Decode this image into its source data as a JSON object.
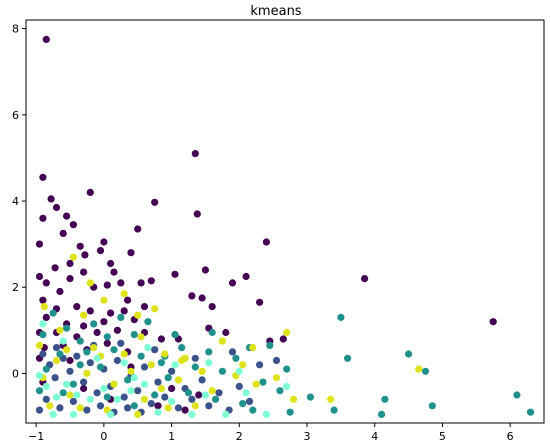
{
  "chart_data": {
    "type": "scatter",
    "title": "kmeans",
    "xlabel": "",
    "ylabel": "",
    "xlim": [
      -1.15,
      6.5
    ],
    "ylim": [
      -1.15,
      8.2
    ],
    "x_ticks": [
      -1,
      0,
      1,
      2,
      3,
      4,
      5,
      6
    ],
    "y_ticks": [
      0,
      2,
      4,
      6,
      8
    ],
    "x_tick_labels": [
      "−1",
      "0",
      "1",
      "2",
      "3",
      "4",
      "5",
      "6"
    ],
    "y_tick_labels": [
      "0",
      "2",
      "4",
      "6",
      "8"
    ],
    "grid": false,
    "legend": "none",
    "series": [
      {
        "color": "#440154",
        "points": [
          [
            -0.85,
            7.75
          ],
          [
            -0.9,
            4.55
          ],
          [
            -0.78,
            4.05
          ],
          [
            -0.2,
            4.2
          ],
          [
            0.75,
            3.97
          ],
          [
            1.35,
            5.1
          ],
          [
            1.38,
            3.7
          ],
          [
            2.4,
            3.05
          ],
          [
            -0.7,
            3.85
          ],
          [
            -0.55,
            3.65
          ],
          [
            -0.45,
            3.45
          ],
          [
            -0.9,
            3.6
          ],
          [
            -0.95,
            3.0
          ],
          [
            -0.6,
            3.25
          ],
          [
            -0.35,
            2.95
          ],
          [
            0.0,
            3.05
          ],
          [
            0.15,
            2.35
          ],
          [
            0.5,
            3.35
          ],
          [
            -0.72,
            2.45
          ],
          [
            -0.5,
            2.55
          ],
          [
            -0.28,
            2.75
          ],
          [
            -0.05,
            2.85
          ],
          [
            0.4,
            2.8
          ],
          [
            0.1,
            2.55
          ],
          [
            -0.95,
            2.25
          ],
          [
            -0.85,
            2.1
          ],
          [
            -0.65,
            1.9
          ],
          [
            -0.5,
            2.2
          ],
          [
            -0.3,
            2.35
          ],
          [
            -0.15,
            2.0
          ],
          [
            0.05,
            2.05
          ],
          [
            0.25,
            2.1
          ],
          [
            0.55,
            2.1
          ],
          [
            0.7,
            2.15
          ],
          [
            1.05,
            2.3
          ],
          [
            1.5,
            2.4
          ],
          [
            1.9,
            2.1
          ],
          [
            2.1,
            2.25
          ],
          [
            3.85,
            2.2
          ],
          [
            5.75,
            1.2
          ],
          [
            1.3,
            1.8
          ],
          [
            1.45,
            1.75
          ],
          [
            1.6,
            1.55
          ],
          [
            2.3,
            1.65
          ],
          [
            -0.9,
            1.7
          ],
          [
            -0.7,
            1.5
          ],
          [
            -0.4,
            1.55
          ],
          [
            -0.2,
            1.45
          ],
          [
            0.1,
            1.4
          ],
          [
            0.35,
            1.7
          ],
          [
            0.6,
            1.55
          ],
          [
            0.45,
            1.25
          ],
          [
            0.0,
            1.2
          ],
          [
            -0.3,
            1.1
          ],
          [
            -0.55,
            1.15
          ],
          [
            -0.85,
            1.3
          ],
          [
            -0.95,
            0.95
          ],
          [
            -0.7,
            0.95
          ],
          [
            -0.4,
            0.85
          ],
          [
            -0.1,
            0.95
          ],
          [
            0.2,
            1.0
          ],
          [
            0.6,
            0.95
          ],
          [
            0.85,
            0.8
          ],
          [
            1.1,
            0.8
          ],
          [
            1.55,
            1.05
          ],
          [
            1.8,
            0.95
          ],
          [
            2.45,
            0.75
          ],
          [
            2.65,
            0.8
          ],
          [
            -0.88,
            0.6
          ],
          [
            -0.6,
            0.65
          ],
          [
            -0.25,
            0.55
          ],
          [
            0.05,
            0.7
          ],
          [
            0.35,
            0.5
          ],
          [
            -0.95,
            0.35
          ],
          [
            -0.5,
            0.3
          ],
          [
            0.4,
            0.15
          ],
          [
            1.0,
            -0.35
          ],
          [
            1.4,
            -0.5
          ],
          [
            1.2,
            -0.85
          ],
          [
            0.8,
            -0.75
          ],
          [
            -0.9,
            -0.2
          ],
          [
            -0.3,
            -0.35
          ],
          [
            0.1,
            -0.6
          ],
          [
            0.3,
            1.45
          ]
        ]
      },
      {
        "color": "#3b528b",
        "points": [
          [
            -0.9,
            0.45
          ],
          [
            -0.8,
            0.2
          ],
          [
            -0.72,
            -0.1
          ],
          [
            -0.6,
            0.35
          ],
          [
            -0.5,
            0.05
          ],
          [
            -0.4,
            0.4
          ],
          [
            -0.3,
            -0.2
          ],
          [
            -0.2,
            0.25
          ],
          [
            -0.1,
            -0.45
          ],
          [
            0.0,
            0.1
          ],
          [
            0.1,
            -0.3
          ],
          [
            0.2,
            0.3
          ],
          [
            0.3,
            -0.55
          ],
          [
            0.4,
            -0.05
          ],
          [
            0.5,
            -0.4
          ],
          [
            0.6,
            0.15
          ],
          [
            0.7,
            -0.7
          ],
          [
            0.8,
            -0.2
          ],
          [
            0.9,
            -0.55
          ],
          [
            1.0,
            0.05
          ],
          [
            1.1,
            -0.8
          ],
          [
            1.2,
            -0.35
          ],
          [
            1.3,
            -0.6
          ],
          [
            1.45,
            -0.15
          ],
          [
            1.55,
            -0.75
          ],
          [
            1.7,
            -0.45
          ],
          [
            1.85,
            -0.85
          ],
          [
            2.0,
            -0.3
          ],
          [
            2.15,
            -0.65
          ],
          [
            2.3,
            0.2
          ],
          [
            -0.85,
            -0.6
          ],
          [
            -0.65,
            -0.8
          ],
          [
            -0.45,
            -0.65
          ],
          [
            -0.25,
            -0.85
          ],
          [
            -0.05,
            -0.75
          ],
          [
            0.15,
            -0.9
          ],
          [
            0.35,
            -0.8
          ],
          [
            0.55,
            -0.9
          ],
          [
            -0.95,
            -0.85
          ],
          [
            -0.7,
            0.6
          ],
          [
            -0.15,
            0.65
          ],
          [
            0.25,
            0.7
          ],
          [
            0.75,
            0.55
          ],
          [
            1.35,
            0.35
          ],
          [
            1.9,
            0.5
          ],
          [
            2.55,
            0.3
          ]
        ]
      },
      {
        "color": "#21918c",
        "points": [
          [
            -0.9,
            0.9
          ],
          [
            -0.75,
            1.4
          ],
          [
            -0.55,
            1.05
          ],
          [
            -0.35,
            0.75
          ],
          [
            -0.15,
            1.15
          ],
          [
            0.05,
            0.85
          ],
          [
            0.25,
            1.3
          ],
          [
            0.45,
            0.9
          ],
          [
            0.65,
            1.2
          ],
          [
            0.9,
            0.4
          ],
          [
            1.15,
            0.6
          ],
          [
            1.35,
            0.15
          ],
          [
            1.55,
            0.5
          ],
          [
            1.75,
            0.05
          ],
          [
            1.95,
            0.35
          ],
          [
            2.15,
            0.6
          ],
          [
            2.35,
            -0.2
          ],
          [
            2.6,
            -0.4
          ],
          [
            2.75,
            -0.9
          ],
          [
            3.5,
            1.3
          ],
          [
            3.6,
            0.35
          ],
          [
            4.5,
            0.45
          ],
          [
            4.75,
            0.05
          ],
          [
            4.15,
            -0.6
          ],
          [
            4.1,
            -0.95
          ],
          [
            4.85,
            -0.75
          ],
          [
            6.1,
            -0.5
          ],
          [
            6.3,
            -0.9
          ],
          [
            3.05,
            -0.55
          ],
          [
            3.4,
            -0.85
          ],
          [
            -0.85,
            0.1
          ],
          [
            -0.65,
            0.45
          ],
          [
            -0.45,
            -0.25
          ],
          [
            -0.25,
            0.5
          ],
          [
            -0.05,
            0.15
          ],
          [
            0.15,
            0.55
          ],
          [
            0.35,
            -0.15
          ],
          [
            0.55,
            0.4
          ],
          [
            0.75,
            -0.5
          ],
          [
            0.95,
            -0.1
          ],
          [
            1.25,
            -0.45
          ],
          [
            1.6,
            0.95
          ],
          [
            2.05,
            -0.7
          ],
          [
            2.45,
            0.65
          ],
          [
            -0.95,
            -0.4
          ],
          [
            -0.6,
            -0.45
          ],
          [
            -0.35,
            0.2
          ],
          [
            0.05,
            -0.55
          ],
          [
            0.45,
            -0.75
          ],
          [
            0.85,
            0.25
          ],
          [
            1.05,
            0.9
          ],
          [
            1.65,
            -0.6
          ],
          [
            2.2,
            -0.85
          ],
          [
            2.7,
            0.1
          ]
        ]
      },
      {
        "color": "#dde318",
        "points": [
          [
            -0.88,
            1.55
          ],
          [
            -0.65,
            1.0
          ],
          [
            -0.45,
            2.7
          ],
          [
            -0.3,
            1.35
          ],
          [
            0.0,
            1.7
          ],
          [
            0.3,
            1.85
          ],
          [
            0.55,
            0.85
          ],
          [
            0.75,
            1.5
          ],
          [
            0.9,
            0.45
          ],
          [
            1.2,
            0.35
          ],
          [
            1.45,
            0.05
          ],
          [
            1.75,
            0.75
          ],
          [
            2.05,
            0.2
          ],
          [
            2.25,
            -0.25
          ],
          [
            2.55,
            -0.1
          ],
          [
            2.7,
            0.95
          ],
          [
            2.8,
            -0.6
          ],
          [
            3.35,
            -0.6
          ],
          [
            4.65,
            0.1
          ],
          [
            -0.9,
            -0.1
          ],
          [
            -0.7,
            0.3
          ],
          [
            -0.5,
            -0.5
          ],
          [
            -0.25,
            0.0
          ],
          [
            -0.05,
            0.4
          ],
          [
            0.15,
            -0.25
          ],
          [
            0.4,
            0.05
          ],
          [
            0.6,
            -0.6
          ],
          [
            0.85,
            -0.35
          ],
          [
            1.1,
            -0.15
          ],
          [
            1.35,
            -0.75
          ],
          [
            1.6,
            -0.4
          ],
          [
            -0.95,
            0.65
          ],
          [
            -0.8,
            -0.75
          ],
          [
            -0.55,
            0.55
          ],
          [
            -0.35,
            -0.8
          ],
          [
            -0.15,
            0.6
          ],
          [
            0.05,
            -0.85
          ],
          [
            0.3,
            0.45
          ],
          [
            0.5,
            -0.95
          ],
          [
            0.7,
            0.2
          ],
          [
            0.95,
            -0.8
          ],
          [
            1.15,
            0.3
          ],
          [
            1.95,
            -0.05
          ],
          [
            -0.2,
            2.1
          ],
          [
            0.5,
            1.35
          ],
          [
            2.2,
            0.6
          ]
        ]
      },
      {
        "color": "#7fffd4",
        "points": [
          [
            -0.95,
            -0.05
          ],
          [
            -0.85,
            -0.3
          ],
          [
            -0.7,
            -0.55
          ],
          [
            -0.55,
            -0.25
          ],
          [
            -0.4,
            -0.5
          ],
          [
            -0.2,
            -0.6
          ],
          [
            0.0,
            -0.35
          ],
          [
            0.2,
            -0.6
          ],
          [
            0.4,
            -0.4
          ],
          [
            0.6,
            -0.25
          ],
          [
            0.8,
            -0.9
          ],
          [
            1.0,
            -0.65
          ],
          [
            1.3,
            -0.95
          ],
          [
            1.5,
            -0.5
          ],
          [
            1.8,
            -0.95
          ],
          [
            2.1,
            -0.45
          ],
          [
            2.4,
            -0.95
          ],
          [
            -0.9,
            1.15
          ],
          [
            -0.6,
            0.75
          ],
          [
            -0.1,
            0.35
          ],
          [
            0.3,
            0.25
          ],
          [
            0.65,
            0.6
          ],
          [
            1.05,
            0.2
          ],
          [
            1.55,
            0.25
          ],
          [
            2.0,
            0.05
          ],
          [
            2.7,
            -0.3
          ],
          [
            -0.75,
            -0.95
          ],
          [
            -0.45,
            -0.95
          ],
          [
            0.1,
            -0.95
          ],
          [
            0.45,
            -0.1
          ]
        ]
      }
    ]
  }
}
